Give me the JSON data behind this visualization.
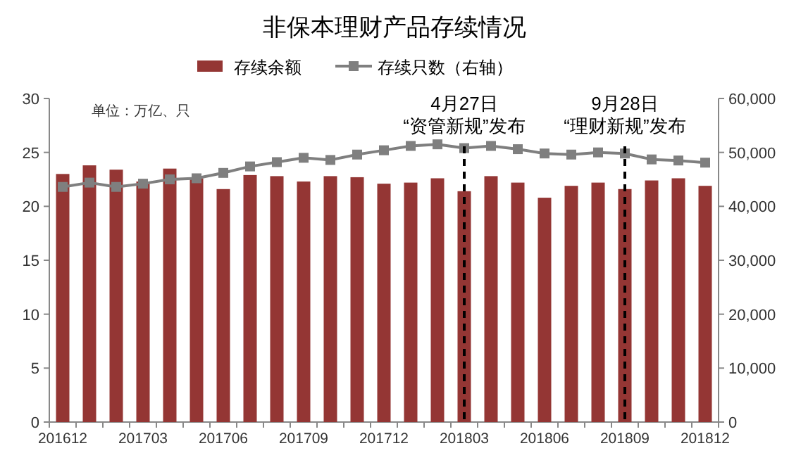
{
  "chart_data": {
    "type": "bar",
    "title": "非保本理财产品存续情况",
    "categories": [
      "201612",
      null,
      null,
      "201703",
      null,
      null,
      "201706",
      null,
      null,
      "201709",
      null,
      null,
      "201712",
      null,
      null,
      "201803",
      null,
      null,
      "201806",
      null,
      null,
      "201809",
      null,
      null,
      "201812"
    ],
    "series": [
      {
        "name": "存续余额",
        "color": "#943634",
        "values": [
          23.0,
          23.8,
          23.4,
          22.3,
          23.5,
          22.6,
          21.6,
          22.9,
          22.8,
          22.3,
          22.8,
          22.7,
          22.1,
          22.2,
          22.6,
          21.4,
          22.8,
          22.2,
          20.8,
          21.9,
          22.2,
          21.6,
          22.4,
          22.6,
          21.9
        ]
      },
      {
        "name": "存续只数（右轴）",
        "type": "line",
        "axis": "y2",
        "color": "#7f7f7f",
        "marker": "square",
        "values": [
          43600,
          44400,
          43600,
          44200,
          45000,
          45200,
          46200,
          47400,
          48200,
          49000,
          48600,
          49600,
          50400,
          51200,
          51500,
          50800,
          51200,
          50600,
          49800,
          49600,
          50000,
          49800,
          48700,
          48500,
          48100
        ]
      }
    ],
    "ylim": [
      0,
      30
    ],
    "yticks": [
      0,
      5,
      10,
      15,
      20,
      25,
      30
    ],
    "y2lim": [
      0,
      60000
    ],
    "y2ticks": [
      {
        "value": 0,
        "label": "0"
      },
      {
        "value": 10000,
        "label": "10,000"
      },
      {
        "value": 20000,
        "label": "20,000"
      },
      {
        "value": 30000,
        "label": "30,000"
      },
      {
        "value": 40000,
        "label": "40,000"
      },
      {
        "value": 50000,
        "label": "50,000"
      },
      {
        "value": 60000,
        "label": "60,000"
      }
    ],
    "ref_lines": [
      {
        "axis": "x",
        "value": "201803",
        "label": "4月27日\n“资管新规”发布",
        "color": "#000000",
        "line_style": "dashed"
      },
      {
        "axis": "x",
        "value": "201809",
        "label": "9月28日\n“理财新规”发布",
        "color": "#000000",
        "line_style": "dashed"
      }
    ],
    "annotations": [
      "单位：万亿、只"
    ],
    "legend": "top",
    "grid": false
  }
}
